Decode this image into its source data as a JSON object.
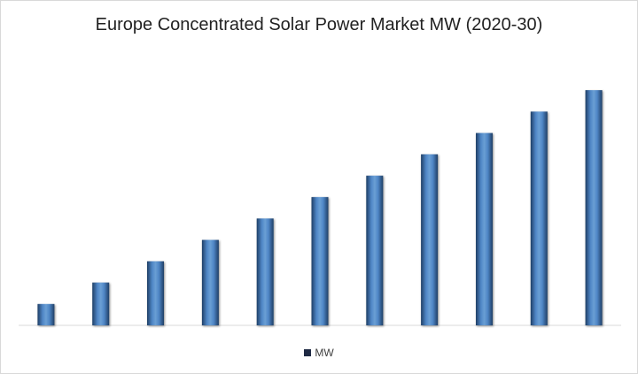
{
  "chart_data": {
    "type": "bar",
    "title": "Europe Concentrated Solar Power Market MW (2020-30)",
    "categories": [
      "",
      "",
      "",
      "",
      "",
      "",
      "",
      "",
      "",
      "",
      ""
    ],
    "series": [
      {
        "name": "MW",
        "values": [
          1,
          2,
          3,
          4,
          5,
          6,
          7,
          8,
          9,
          10,
          11
        ]
      }
    ],
    "xlabel": "",
    "ylabel": "",
    "ylim": [
      0,
      11
    ],
    "grid": false,
    "legend_position": "bottom",
    "colors": {
      "bar_center": "#6a9fd4",
      "bar_edge": "#1f3f66",
      "legend_swatch": "#1f2a44",
      "axis": "#d9d9d9"
    }
  }
}
